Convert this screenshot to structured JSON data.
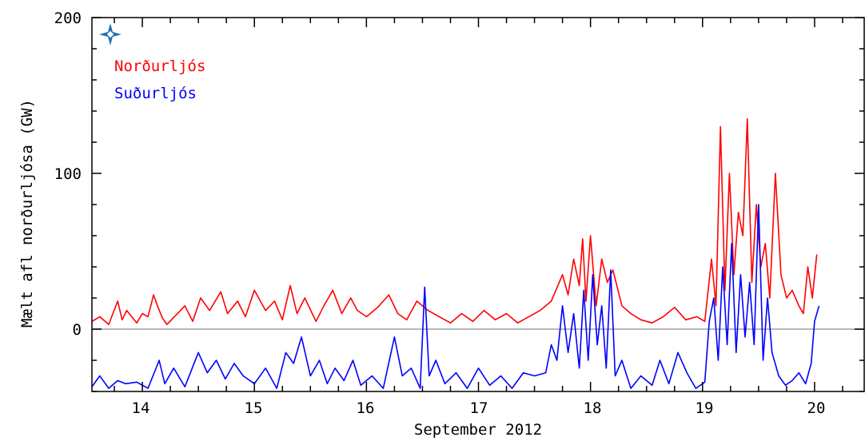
{
  "chart_data": {
    "type": "line",
    "title": "",
    "xlabel": "September 2012",
    "ylabel": "Mælt afl norðurljósa (GW)",
    "xlim": [
      13.55,
      20.45
    ],
    "ylim": [
      -40,
      200
    ],
    "x_ticks": [
      14,
      15,
      16,
      17,
      18,
      19,
      20
    ],
    "x_tick_labels": [
      "14",
      "15",
      "16",
      "17",
      "18",
      "19",
      "20"
    ],
    "y_ticks": [
      0,
      100,
      200
    ],
    "y_tick_labels": [
      "0",
      "100",
      "200"
    ],
    "zero_line": 0,
    "legend_position": "top-left",
    "series": [
      {
        "name": "Norðurljós",
        "color": "#ff0000",
        "x": [
          13.55,
          13.62,
          13.7,
          13.78,
          13.82,
          13.86,
          13.95,
          14.0,
          14.05,
          14.1,
          14.14,
          14.18,
          14.22,
          14.3,
          14.38,
          14.45,
          14.52,
          14.6,
          14.7,
          14.76,
          14.85,
          14.92,
          15.0,
          15.1,
          15.18,
          15.25,
          15.32,
          15.38,
          15.45,
          15.55,
          15.62,
          15.7,
          15.78,
          15.86,
          15.92,
          16.0,
          16.1,
          16.2,
          16.28,
          16.36,
          16.45,
          16.55,
          16.65,
          16.75,
          16.85,
          16.95,
          17.05,
          17.15,
          17.25,
          17.35,
          17.45,
          17.55,
          17.65,
          17.75,
          17.8,
          17.85,
          17.9,
          17.93,
          17.96,
          18.0,
          18.05,
          18.1,
          18.15,
          18.2,
          18.28,
          18.36,
          18.45,
          18.55,
          18.65,
          18.75,
          18.85,
          18.95,
          19.02,
          19.08,
          19.12,
          19.16,
          19.2,
          19.24,
          19.28,
          19.32,
          19.36,
          19.4,
          19.44,
          19.48,
          19.52,
          19.56,
          19.6,
          19.65,
          19.7,
          19.75,
          19.8,
          19.86,
          19.9,
          19.94,
          19.98,
          20.02
        ],
        "values": [
          5,
          8,
          3,
          18,
          6,
          12,
          4,
          10,
          8,
          22,
          14,
          7,
          3,
          9,
          15,
          5,
          20,
          12,
          24,
          10,
          18,
          8,
          25,
          12,
          18,
          6,
          28,
          10,
          20,
          5,
          15,
          25,
          10,
          20,
          12,
          8,
          14,
          22,
          10,
          6,
          18,
          12,
          8,
          4,
          10,
          5,
          12,
          6,
          10,
          4,
          8,
          12,
          18,
          35,
          22,
          45,
          28,
          58,
          18,
          60,
          15,
          45,
          30,
          38,
          15,
          10,
          6,
          4,
          8,
          14,
          6,
          8,
          5,
          45,
          15,
          130,
          25,
          100,
          35,
          75,
          60,
          135,
          30,
          80,
          40,
          55,
          20,
          100,
          35,
          20,
          25,
          15,
          10,
          40,
          20,
          48
        ]
      },
      {
        "name": "Suðurljós",
        "color": "#0000ff",
        "x": [
          13.55,
          13.62,
          13.7,
          13.78,
          13.85,
          13.95,
          14.05,
          14.15,
          14.2,
          14.28,
          14.38,
          14.5,
          14.58,
          14.66,
          14.74,
          14.82,
          14.9,
          15.0,
          15.1,
          15.2,
          15.28,
          15.35,
          15.42,
          15.5,
          15.58,
          15.65,
          15.72,
          15.8,
          15.88,
          15.95,
          16.05,
          16.15,
          16.25,
          16.32,
          16.4,
          16.48,
          16.52,
          16.56,
          16.62,
          16.7,
          16.8,
          16.9,
          17.0,
          17.1,
          17.2,
          17.3,
          17.4,
          17.5,
          17.6,
          17.65,
          17.7,
          17.75,
          17.8,
          17.85,
          17.9,
          17.94,
          17.98,
          18.02,
          18.06,
          18.1,
          18.14,
          18.18,
          18.22,
          18.28,
          18.36,
          18.45,
          18.55,
          18.62,
          18.7,
          18.78,
          18.86,
          18.94,
          19.02,
          19.06,
          19.1,
          19.14,
          19.18,
          19.22,
          19.26,
          19.3,
          19.34,
          19.38,
          19.42,
          19.46,
          19.5,
          19.54,
          19.58,
          19.62,
          19.68,
          19.74,
          19.8,
          19.86,
          19.92,
          19.97,
          20.0,
          20.04
        ],
        "values": [
          -37,
          -30,
          -38,
          -33,
          -35,
          -34,
          -38,
          -20,
          -35,
          -25,
          -37,
          -15,
          -28,
          -20,
          -32,
          -22,
          -30,
          -35,
          -25,
          -38,
          -15,
          -22,
          -5,
          -30,
          -20,
          -35,
          -25,
          -33,
          -20,
          -36,
          -30,
          -38,
          -5,
          -30,
          -25,
          -38,
          27,
          -30,
          -20,
          -35,
          -28,
          -38,
          -25,
          -36,
          -30,
          -38,
          -28,
          -30,
          -28,
          -10,
          -20,
          15,
          -15,
          10,
          -25,
          25,
          -20,
          35,
          -10,
          15,
          -25,
          38,
          -30,
          -20,
          -38,
          -30,
          -36,
          -20,
          -35,
          -15,
          -28,
          -38,
          -34,
          5,
          20,
          -20,
          40,
          -10,
          55,
          -15,
          35,
          -5,
          30,
          -10,
          80,
          -20,
          20,
          -15,
          -30,
          -36,
          -33,
          -28,
          -35,
          -22,
          5,
          15
        ]
      }
    ]
  },
  "credit_icon": "compass-star-icon"
}
